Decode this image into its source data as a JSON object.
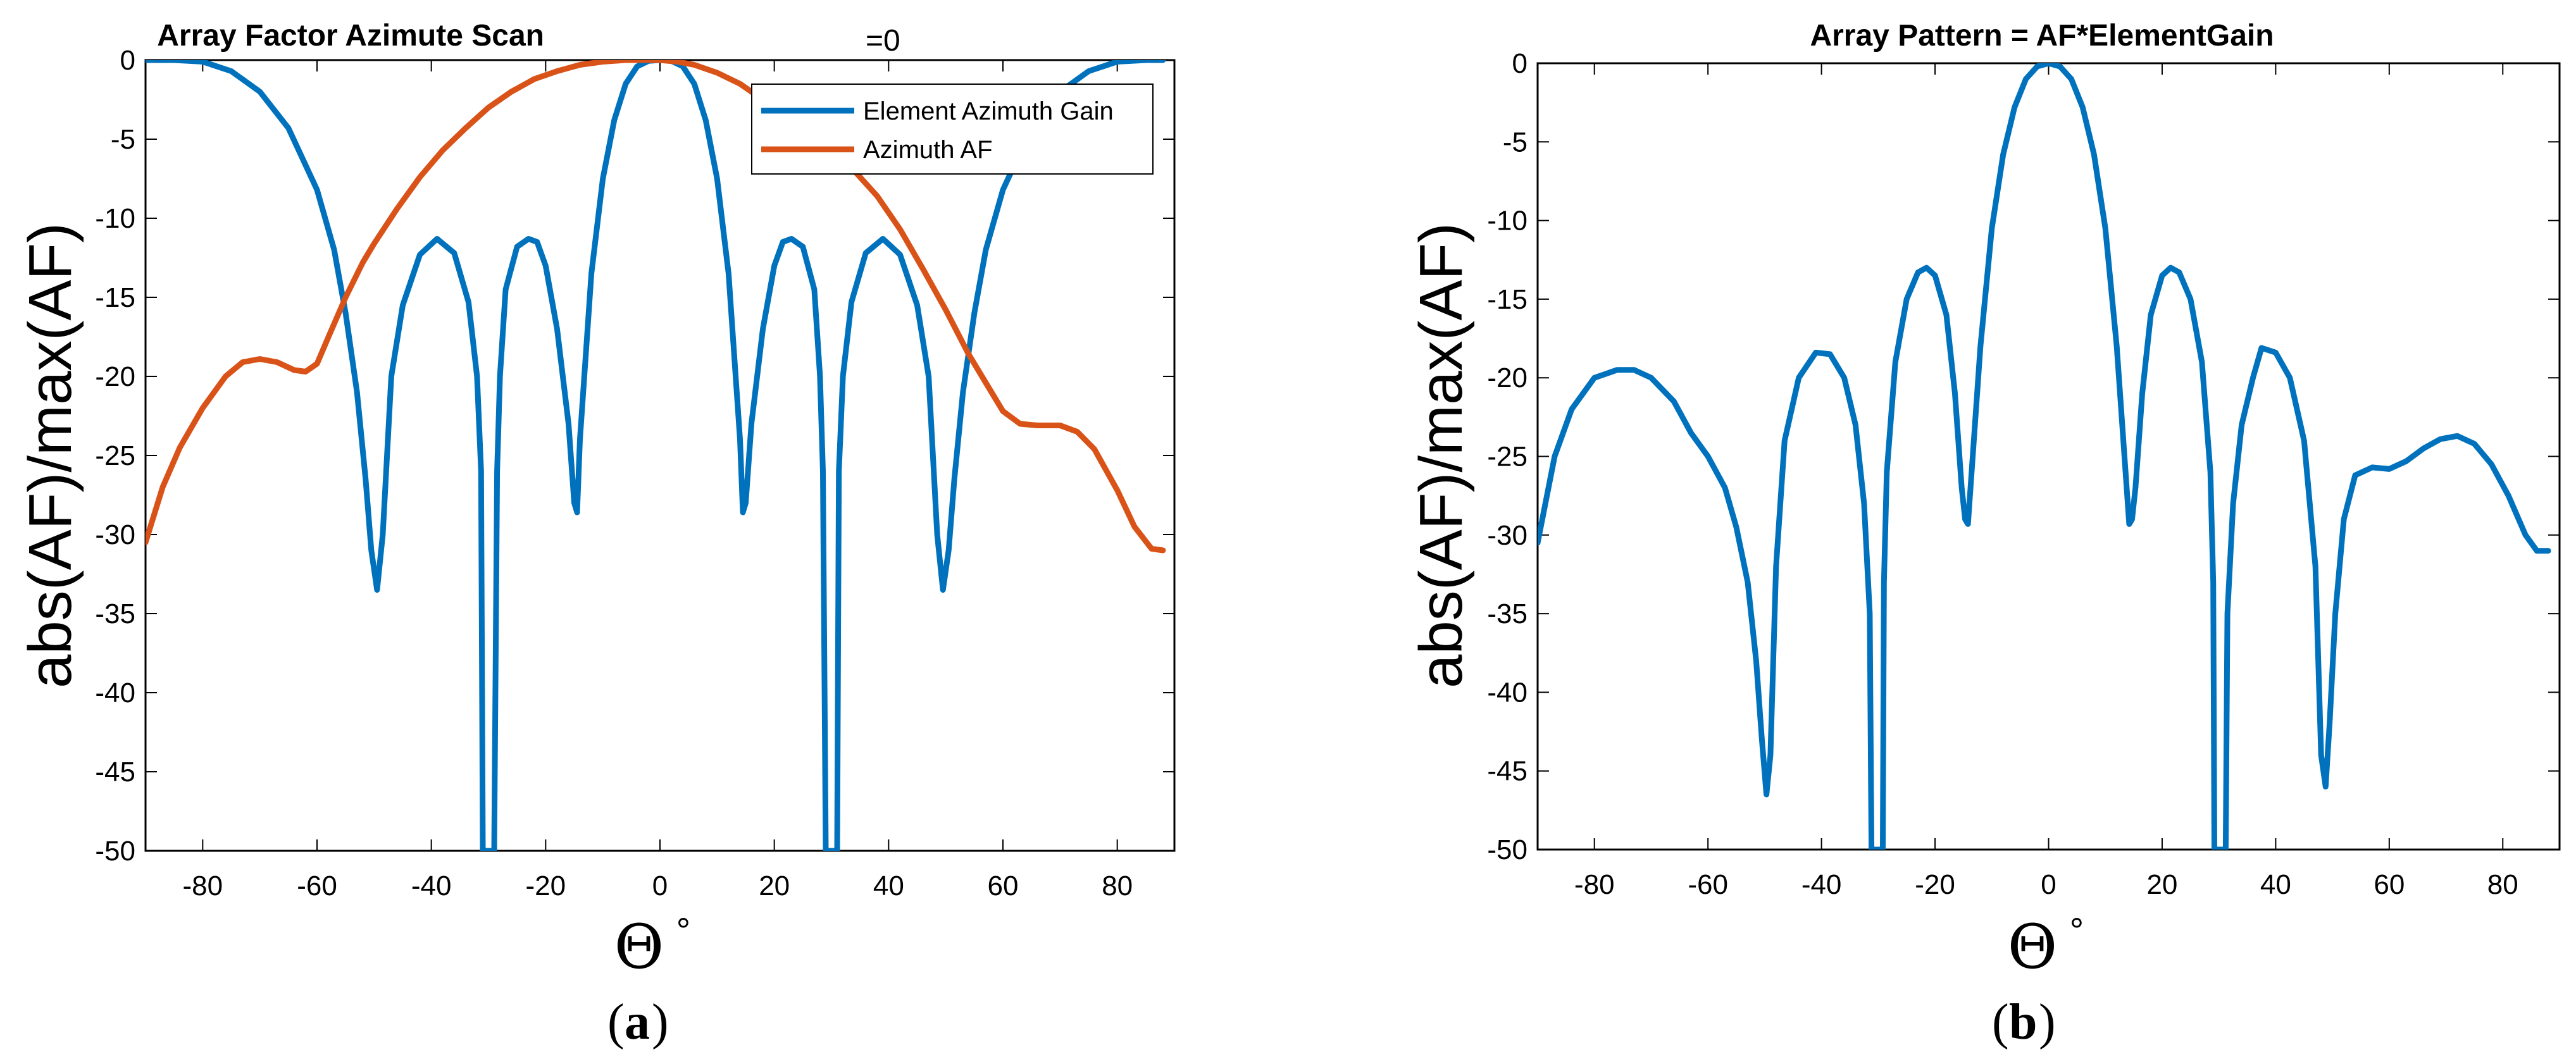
{
  "chart_data": [
    {
      "type": "line",
      "title": "Array Factor Azimute Scan",
      "title_suffix": "=0",
      "xlabel": "Θ",
      "xlabel_superscript": "°",
      "ylabel": "abs(AF)/max(AF)",
      "xlim": [
        -90,
        90
      ],
      "ylim": [
        -50,
        0
      ],
      "xticks": [
        -80,
        -60,
        -40,
        -20,
        0,
        20,
        40,
        60,
        80
      ],
      "yticks": [
        0,
        -5,
        -10,
        -15,
        -20,
        -25,
        -30,
        -35,
        -40,
        -45,
        -50
      ],
      "grid": false,
      "legend_position": "top-right",
      "caption_open": "(",
      "caption_letter": "a",
      "caption_close": ")",
      "series": [
        {
          "name": "Element Azimuth Gain",
          "color": "#0072BD",
          "x": [
            -90,
            -85,
            -80,
            -75,
            -70,
            -65,
            -60,
            -57,
            -55,
            -53,
            -51.5,
            -50.5,
            -49.5,
            -48.5,
            -47,
            -45,
            -42,
            -39,
            -36,
            -33.5,
            -32,
            -31.3,
            -31,
            -30.7,
            -30,
            -29.5,
            -29,
            -28.5,
            -28,
            -27,
            -25,
            -23,
            -21.5,
            -20,
            -18,
            -16,
            -15,
            -14.5,
            -14,
            -12,
            -10,
            -8,
            -6,
            -4,
            -2,
            0,
            2,
            4,
            6,
            8,
            10,
            12,
            14,
            14.5,
            15,
            16,
            18,
            20,
            21.5,
            23,
            25,
            27,
            28,
            28.5,
            29,
            29.5,
            30,
            30.7,
            31,
            31.3,
            32,
            33.5,
            36,
            39,
            42,
            45,
            47,
            48.5,
            49.5,
            50.5,
            51.5,
            53,
            55,
            57,
            60,
            65,
            70,
            75,
            80,
            85,
            88
          ],
          "y": [
            0,
            0,
            -0.1,
            -0.7,
            -2,
            -4.3,
            -8.2,
            -12,
            -16,
            -21,
            -26.5,
            -31,
            -33.5,
            -30,
            -20,
            -15.5,
            -12.3,
            -11.3,
            -12.2,
            -15.3,
            -20,
            -26,
            -50,
            -50,
            -50,
            -50,
            -50,
            -26,
            -20,
            -14.5,
            -11.8,
            -11.3,
            -11.5,
            -13,
            -17,
            -23,
            -28,
            -28.6,
            -24,
            -13.5,
            -7.5,
            -3.8,
            -1.5,
            -0.4,
            -0.05,
            0,
            -0.05,
            -0.4,
            -1.5,
            -3.8,
            -7.5,
            -13.5,
            -24,
            -28.6,
            -28,
            -23,
            -17,
            -13,
            -11.5,
            -11.3,
            -11.8,
            -14.5,
            -20,
            -26,
            -50,
            -50,
            -50,
            -50,
            -50,
            -26,
            -20,
            -15.3,
            -12.2,
            -11.3,
            -12.3,
            -15.5,
            -20,
            -30,
            -33.5,
            -31,
            -26.5,
            -21,
            -16,
            -12,
            -8.2,
            -4.3,
            -2,
            -0.7,
            -0.1,
            0,
            0
          ]
        },
        {
          "name": "Azimuth AF",
          "color": "#D95319",
          "x": [
            -90,
            -87,
            -84,
            -80,
            -76,
            -73,
            -70,
            -67,
            -64,
            -62,
            -60,
            -58,
            -55,
            -52,
            -50,
            -46,
            -42,
            -38,
            -34,
            -30,
            -26,
            -22,
            -18,
            -14,
            -10,
            -6,
            -3,
            0,
            3,
            6,
            10,
            14,
            18,
            22,
            26,
            30,
            34,
            38,
            42,
            46,
            50,
            54,
            58,
            60,
            63,
            66,
            70,
            73,
            76,
            80,
            83,
            86,
            88
          ],
          "y": [
            -30.5,
            -27,
            -24.5,
            -22,
            -20,
            -19.1,
            -18.9,
            -19.1,
            -19.6,
            -19.7,
            -19.2,
            -17.5,
            -15,
            -12.8,
            -11.6,
            -9.4,
            -7.4,
            -5.7,
            -4.3,
            -3,
            -2,
            -1.2,
            -0.7,
            -0.3,
            -0.1,
            0,
            0,
            0,
            -0.1,
            -0.3,
            -0.8,
            -1.5,
            -2.5,
            -3.4,
            -4.4,
            -5.6,
            -7,
            -8.6,
            -10.7,
            -13.2,
            -15.8,
            -18.6,
            -21,
            -22.2,
            -23,
            -23.1,
            -23.1,
            -23.5,
            -24.6,
            -27.2,
            -29.5,
            -30.9,
            -31
          ]
        }
      ]
    },
    {
      "type": "line",
      "title": "Array Pattern = AF*ElementGain",
      "xlabel": "Θ",
      "xlabel_superscript": "°",
      "ylabel": "abs(AF)/max(AF)",
      "xlim": [
        -90,
        90
      ],
      "ylim": [
        -50,
        0
      ],
      "xticks": [
        -80,
        -60,
        -40,
        -20,
        0,
        20,
        40,
        60,
        80
      ],
      "yticks": [
        0,
        -5,
        -10,
        -15,
        -20,
        -25,
        -30,
        -35,
        -40,
        -45,
        -50
      ],
      "grid": false,
      "caption_open": "(",
      "caption_letter": "b",
      "caption_close": ")",
      "series": [
        {
          "color": "#0072BD",
          "x": [
            -90,
            -87,
            -84,
            -80,
            -76,
            -73,
            -70,
            -66,
            -63,
            -60,
            -57,
            -55,
            -53,
            -51.5,
            -50.5,
            -49.7,
            -49,
            -48,
            -46.5,
            -44,
            -41,
            -38.5,
            -36,
            -34,
            -32.5,
            -31.5,
            -31.2,
            -31,
            -30.7,
            -30,
            -29.5,
            -29.2,
            -29,
            -28.5,
            -27,
            -25,
            -23,
            -21.5,
            -20,
            -18,
            -16.5,
            -15.3,
            -14.7,
            -14.2,
            -12,
            -10,
            -8,
            -6,
            -4,
            -2,
            0,
            2,
            4,
            6,
            8,
            10,
            12,
            14.2,
            14.7,
            15.3,
            16.5,
            18,
            20,
            21.5,
            23,
            25,
            27,
            28.5,
            29,
            29.2,
            29.5,
            30,
            30.7,
            31,
            31.2,
            31.5,
            32.5,
            34,
            36,
            37.5,
            40,
            42.5,
            45,
            47,
            48,
            48.8,
            49.5,
            50.5,
            52,
            54,
            57,
            60,
            63,
            66,
            69,
            72,
            75,
            78,
            81,
            84,
            86,
            88
          ],
          "y": [
            -30.5,
            -25,
            -22,
            -20,
            -19.5,
            -19.5,
            -20,
            -21.5,
            -23.5,
            -25,
            -27,
            -29.5,
            -33,
            -38,
            -43,
            -46.5,
            -44,
            -32,
            -24,
            -20,
            -18.4,
            -18.5,
            -20,
            -23,
            -28,
            -35,
            -50,
            -50,
            -50,
            -50,
            -50,
            -50,
            -33,
            -26,
            -19,
            -15,
            -13.3,
            -13,
            -13.5,
            -16,
            -21,
            -27,
            -29,
            -29.3,
            -18,
            -10.5,
            -5.8,
            -2.8,
            -1,
            -0.2,
            0,
            -0.2,
            -1,
            -2.8,
            -5.8,
            -10.5,
            -18,
            -29.3,
            -29,
            -27,
            -21,
            -16,
            -13.5,
            -13,
            -13.3,
            -15,
            -19,
            -26,
            -33,
            -50,
            -50,
            -50,
            -50,
            -50,
            -50,
            -35,
            -28,
            -23,
            -20,
            -18.1,
            -18.4,
            -20,
            -24,
            -32,
            -44,
            -46,
            -42,
            -35,
            -29,
            -26.2,
            -25.7,
            -25.8,
            -25.3,
            -24.5,
            -23.9,
            -23.7,
            -24.2,
            -25.5,
            -27.5,
            -30,
            -31,
            -31
          ]
        }
      ]
    }
  ]
}
